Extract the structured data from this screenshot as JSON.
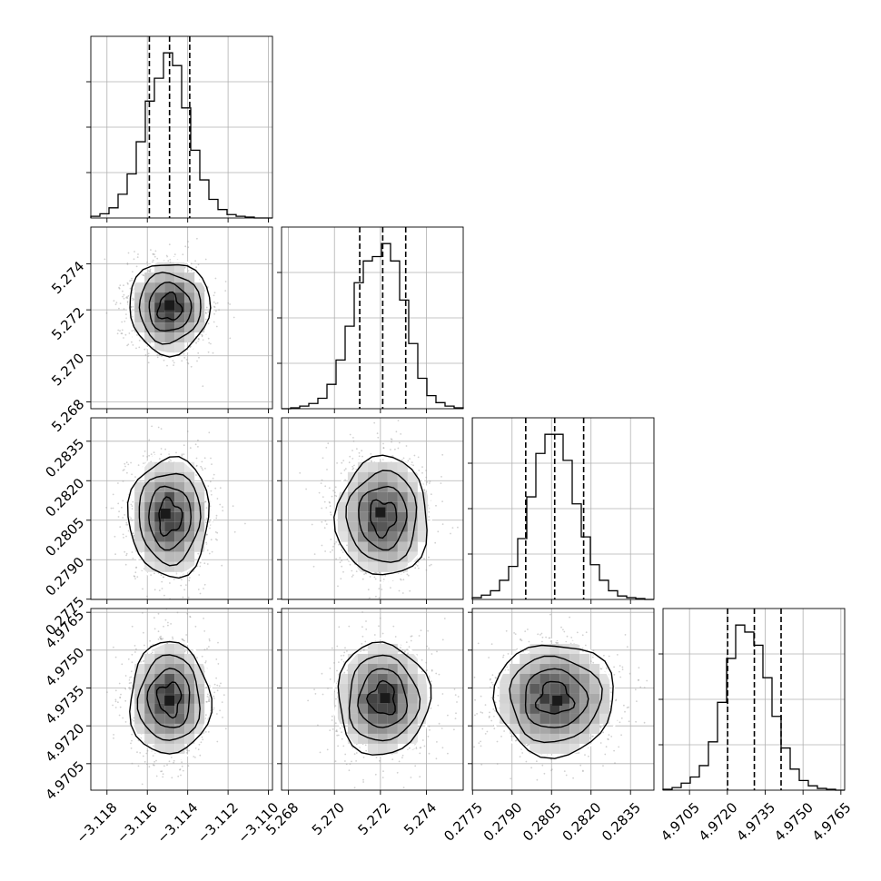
{
  "chart_data": {
    "type": "corner",
    "parameters": [
      {
        "axis_ticks": [
          "−3.118",
          "−3.116",
          "−3.114",
          "−3.112",
          "−3.110"
        ],
        "tick_values": [
          -3.118,
          -3.116,
          -3.114,
          -3.112,
          -3.11
        ],
        "range": [
          -3.1188,
          -3.1098
        ],
        "quantiles": [
          -3.1159,
          -3.1149,
          -3.1139
        ],
        "hist": {
          "edges_start": -3.1188,
          "bin_width": 0.00045,
          "counts": [
            2,
            5,
            12,
            28,
            52,
            90,
            138,
            165,
            195,
            180,
            130,
            80,
            45,
            22,
            10,
            4,
            2,
            1,
            0,
            0
          ]
        }
      },
      {
        "axis_ticks": [
          "5.268",
          "5.270",
          "5.272",
          "5.274"
        ],
        "tick_values": [
          5.268,
          5.27,
          5.272,
          5.274
        ],
        "range": [
          5.2677,
          5.2756
        ],
        "quantiles": [
          5.2711,
          5.2721,
          5.2731
        ],
        "hist": {
          "edges_start": 5.2677,
          "bin_width": 0.000395,
          "counts": [
            0,
            1,
            3,
            6,
            12,
            28,
            56,
            95,
            145,
            170,
            175,
            190,
            170,
            125,
            75,
            35,
            15,
            7,
            3,
            1
          ]
        }
      },
      {
        "axis_ticks": [
          "0.2775",
          "0.2790",
          "0.2805",
          "0.2820",
          "0.2835"
        ],
        "tick_values": [
          0.2775,
          0.279,
          0.2805,
          0.282,
          0.2835
        ],
        "range": [
          0.27749,
          0.28439
        ],
        "quantiles": [
          0.27952,
          0.28062,
          0.28172
        ],
        "hist": {
          "edges_start": 0.27749,
          "bin_width": 0.000345,
          "counts": [
            2,
            5,
            10,
            22,
            38,
            70,
            118,
            168,
            190,
            190,
            160,
            110,
            72,
            40,
            22,
            10,
            4,
            2,
            1,
            0
          ]
        }
      },
      {
        "axis_ticks": [
          "4.9705",
          "4.9720",
          "4.9735",
          "4.9750",
          "4.9765"
        ],
        "tick_values": [
          4.9705,
          4.972,
          4.9735,
          4.975,
          4.9765
        ],
        "range": [
          4.96945,
          4.97665
        ],
        "quantiles": [
          4.97201,
          4.97307,
          4.97413
        ],
        "hist": {
          "edges_start": 4.96945,
          "bin_width": 0.00036,
          "counts": [
            1,
            3,
            8,
            15,
            28,
            55,
            100,
            150,
            188,
            180,
            165,
            128,
            84,
            48,
            24,
            11,
            5,
            2,
            1,
            0
          ]
        }
      }
    ],
    "pairs": [
      {
        "x": 0,
        "y": 1,
        "center": [
          -3.1149,
          5.2721
        ],
        "sigma": [
          0.00095,
          0.00095
        ],
        "peak_cells": [
          [
            -3.1149,
            5.2722
          ]
        ]
      },
      {
        "x": 0,
        "y": 2,
        "center": [
          -3.1149,
          0.28062
        ],
        "sigma": [
          0.00095,
          0.00108
        ],
        "peak_cells": [
          [
            -3.1151,
            0.28075
          ]
        ]
      },
      {
        "x": 1,
        "y": 2,
        "center": [
          5.2721,
          0.28062
        ],
        "sigma": [
          0.00095,
          0.00108
        ],
        "peak_cells": [
          [
            5.272,
            0.2808
          ]
        ]
      },
      {
        "x": 0,
        "y": 3,
        "center": [
          -3.1149,
          4.97307
        ],
        "sigma": [
          0.00095,
          0.00106
        ],
        "peak_cells": [
          [
            -3.1149,
            4.973
          ]
        ]
      },
      {
        "x": 1,
        "y": 3,
        "center": [
          5.2721,
          4.97307
        ],
        "sigma": [
          0.00095,
          0.00106
        ],
        "peak_cells": [
          [
            5.2722,
            4.9731
          ]
        ]
      },
      {
        "x": 2,
        "y": 3,
        "center": [
          0.28062,
          4.97307
        ],
        "sigma": [
          0.00108,
          0.00106
        ],
        "peak_cells": [
          [
            0.28072,
            4.973
          ]
        ]
      }
    ],
    "contour_levels_sigma": [
      0.5,
      1.0,
      1.5,
      2.0
    ],
    "grid": true,
    "colors": {
      "line": "#000000",
      "grid": "#b0b0b0",
      "scatter": "#9a9a9a"
    }
  }
}
